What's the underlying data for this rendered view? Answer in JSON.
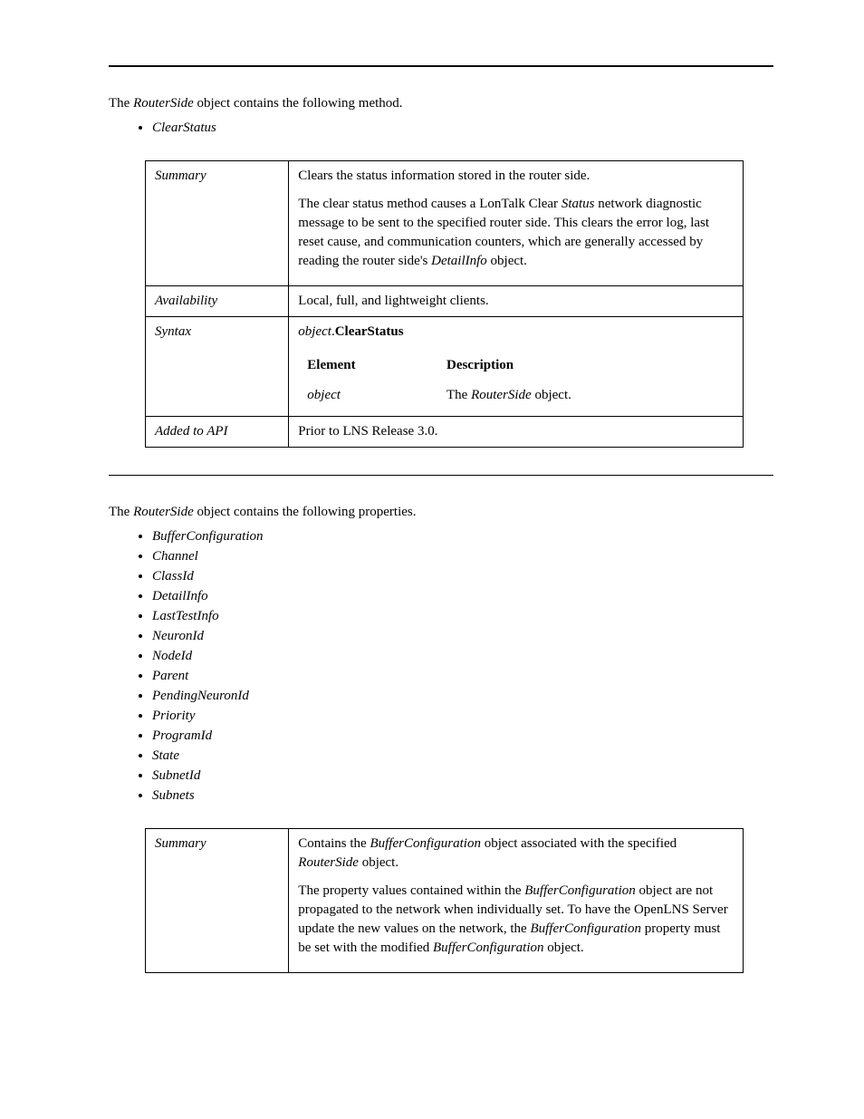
{
  "methods_intro": {
    "pre": "The ",
    "obj": "RouterSide",
    "post": " object contains the following method."
  },
  "methods_list": [
    "ClearStatus"
  ],
  "clearstatus": {
    "rows": {
      "summary_label": "Summary",
      "summary_p1": "Clears the status information stored in the router side.",
      "summary_p2": {
        "t1": "The clear status method causes a LonTalk Clear ",
        "i1": "Status",
        "t2": " network diagnostic message to be sent to the specified router side.  This clears the error log, last reset cause, and communication counters, which are generally accessed by reading the router side's ",
        "i2": "DetailInfo",
        "t3": " object."
      },
      "availability_label": "Availability",
      "availability_val": "Local, full, and lightweight clients.",
      "syntax_label": "Syntax",
      "syntax_line": {
        "obj": "object",
        "dot": ".",
        "method": "ClearStatus"
      },
      "syntax_head_el": "Element",
      "syntax_head_desc": "Description",
      "syntax_row_el": "object",
      "syntax_row_desc": {
        "t1": "The ",
        "i1": "RouterSide",
        "t2": "  object."
      },
      "added_label": "Added to API",
      "added_val": "Prior to LNS Release 3.0."
    }
  },
  "props_intro": {
    "pre": "The ",
    "obj": "RouterSide",
    "post": " object contains the following properties."
  },
  "props_list": [
    "BufferConfiguration",
    "Channel",
    "ClassId",
    "DetailInfo",
    "LastTestInfo",
    "NeuronId",
    "NodeId",
    "Parent",
    "PendingNeuronId",
    "Priority",
    "ProgramId",
    "State",
    "SubnetId",
    "Subnets"
  ],
  "bufferconfig": {
    "summary_label": "Summary",
    "summary_p1": {
      "t1": "Contains the ",
      "i1": "BufferConfiguration",
      "t2": " object associated with the specified ",
      "i2": "RouterSide",
      "t3": " object."
    },
    "summary_p2": {
      "t1": "The property values contained within the ",
      "i1": "BufferConfiguration",
      "t2": " object are not propagated to the network when individually set.  To have the OpenLNS Server update the new values on the network, the ",
      "i2": "BufferConfiguration",
      "t3": " property must be set with the modified ",
      "i3": "BufferConfiguration",
      "t4": " object."
    }
  }
}
